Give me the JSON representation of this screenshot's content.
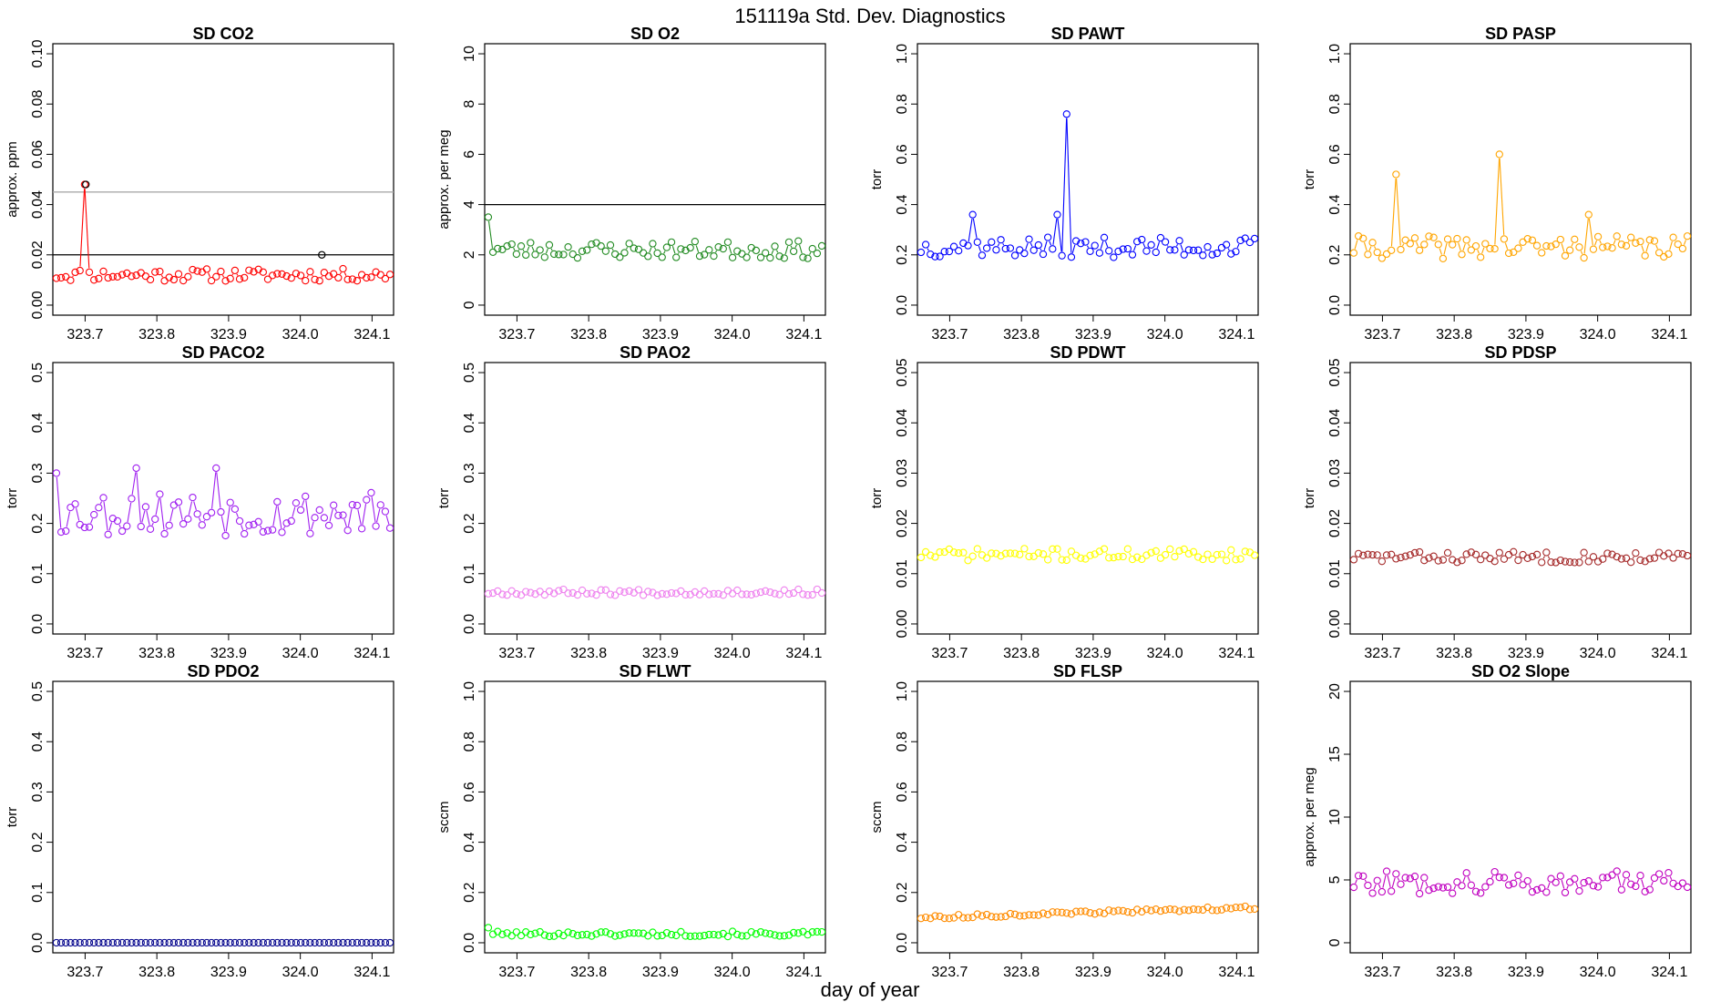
{
  "figure": {
    "title": "151119a   Std. Dev. Diagnostics",
    "xlabel": "day of year"
  },
  "chart_data": [
    {
      "type": "line",
      "title": "SD CO2",
      "ylabel": "approx. ppm",
      "color": "#ff0000",
      "ylim": [
        0,
        0.1
      ],
      "yticks": [
        "0.00",
        "0.02",
        "0.04",
        "0.06",
        "0.08",
        "0.10"
      ],
      "ytick_values": [
        0,
        0.02,
        0.04,
        0.06,
        0.08,
        0.1
      ],
      "xlim": [
        323.655,
        324.13
      ],
      "xticks": [
        "323.7",
        "323.8",
        "323.9",
        "324.0",
        "324.1"
      ],
      "xtick_values": [
        323.7,
        323.8,
        323.9,
        324.0,
        324.1
      ],
      "hlines": [
        {
          "y": 0.02,
          "color": "#000000"
        },
        {
          "y": 0.045,
          "color": "#aaaaaa"
        }
      ],
      "highlight_points": [
        {
          "x": 323.701,
          "y": 0.048
        },
        {
          "x": 324.03,
          "y": 0.02
        }
      ],
      "seed": 11,
      "base": 0.012,
      "jitter": 0.0025,
      "spikes": [
        {
          "x": 323.701,
          "y": 0.048
        }
      ]
    },
    {
      "type": "line",
      "title": "SD O2",
      "ylabel": "approx. per meg",
      "color": "#228b22",
      "ylim": [
        0,
        10
      ],
      "yticks": [
        "0",
        "2",
        "4",
        "6",
        "8",
        "10"
      ],
      "ytick_values": [
        0,
        2,
        4,
        6,
        8,
        10
      ],
      "xlim": [
        323.655,
        324.13
      ],
      "xticks": [
        "323.7",
        "323.8",
        "323.9",
        "324.0",
        "324.1"
      ],
      "xtick_values": [
        323.7,
        323.8,
        323.9,
        324.0,
        324.1
      ],
      "hlines": [
        {
          "y": 4,
          "color": "#000000"
        }
      ],
      "highlight_points": [],
      "seed": 23,
      "base": 2.2,
      "jitter": 0.35,
      "spikes": [
        {
          "x": 323.66,
          "y": 3.5
        }
      ]
    },
    {
      "type": "line",
      "title": "SD PAWT",
      "ylabel": "torr",
      "color": "#0000ff",
      "ylim": [
        0,
        1.0
      ],
      "yticks": [
        "0.0",
        "0.2",
        "0.4",
        "0.6",
        "0.8",
        "1.0"
      ],
      "ytick_values": [
        0,
        0.2,
        0.4,
        0.6,
        0.8,
        1.0
      ],
      "xlim": [
        323.655,
        324.13
      ],
      "xticks": [
        "323.7",
        "323.8",
        "323.9",
        "324.0",
        "324.1"
      ],
      "xtick_values": [
        323.7,
        323.8,
        323.9,
        324.0,
        324.1
      ],
      "hlines": [],
      "highlight_points": [],
      "seed": 37,
      "base": 0.23,
      "jitter": 0.04,
      "spikes": [
        {
          "x": 323.866,
          "y": 0.76
        },
        {
          "x": 323.73,
          "y": 0.36
        },
        {
          "x": 323.85,
          "y": 0.36
        }
      ]
    },
    {
      "type": "line",
      "title": "SD PASP",
      "ylabel": "torr",
      "color": "#ffa500",
      "ylim": [
        0,
        1.0
      ],
      "yticks": [
        "0.0",
        "0.2",
        "0.4",
        "0.6",
        "0.8",
        "1.0"
      ],
      "ytick_values": [
        0,
        0.2,
        0.4,
        0.6,
        0.8,
        1.0
      ],
      "xlim": [
        323.655,
        324.13
      ],
      "xticks": [
        "323.7",
        "323.8",
        "323.9",
        "324.0",
        "324.1"
      ],
      "xtick_values": [
        323.7,
        323.8,
        323.9,
        324.0,
        324.1
      ],
      "hlines": [],
      "highlight_points": [],
      "seed": 41,
      "base": 0.23,
      "jitter": 0.045,
      "spikes": [
        {
          "x": 323.716,
          "y": 0.52
        },
        {
          "x": 323.866,
          "y": 0.6
        },
        {
          "x": 323.99,
          "y": 0.36
        }
      ]
    },
    {
      "type": "line",
      "title": "SD PACO2",
      "ylabel": "torr",
      "color": "#a020f0",
      "ylim": [
        0,
        0.5
      ],
      "yticks": [
        "0.0",
        "0.1",
        "0.2",
        "0.3",
        "0.4",
        "0.5"
      ],
      "ytick_values": [
        0,
        0.1,
        0.2,
        0.3,
        0.4,
        0.5
      ],
      "xlim": [
        323.655,
        324.13
      ],
      "xticks": [
        "323.7",
        "323.8",
        "323.9",
        "324.0",
        "324.1"
      ],
      "xtick_values": [
        323.7,
        323.8,
        323.9,
        324.0,
        324.1
      ],
      "hlines": [],
      "highlight_points": [],
      "seed": 53,
      "base": 0.22,
      "jitter": 0.045,
      "spikes": [
        {
          "x": 323.66,
          "y": 0.3
        },
        {
          "x": 323.77,
          "y": 0.31
        },
        {
          "x": 323.883,
          "y": 0.31
        }
      ]
    },
    {
      "type": "line",
      "title": "SD PAO2",
      "ylabel": "torr",
      "color": "#ee82ee",
      "ylim": [
        0,
        0.5
      ],
      "yticks": [
        "0.0",
        "0.1",
        "0.2",
        "0.3",
        "0.4",
        "0.5"
      ],
      "ytick_values": [
        0,
        0.1,
        0.2,
        0.3,
        0.4,
        0.5
      ],
      "xlim": [
        323.655,
        324.13
      ],
      "xticks": [
        "323.7",
        "323.8",
        "323.9",
        "324.0",
        "324.1"
      ],
      "xtick_values": [
        323.7,
        323.8,
        323.9,
        324.0,
        324.1
      ],
      "hlines": [],
      "highlight_points": [],
      "seed": 67,
      "base": 0.063,
      "jitter": 0.006,
      "spikes": []
    },
    {
      "type": "line",
      "title": "SD PDWT",
      "ylabel": "torr",
      "color": "#ffff00",
      "ylim": [
        0,
        0.05
      ],
      "yticks": [
        "0.00",
        "0.01",
        "0.02",
        "0.03",
        "0.04",
        "0.05"
      ],
      "ytick_values": [
        0,
        0.01,
        0.02,
        0.03,
        0.04,
        0.05
      ],
      "xlim": [
        323.655,
        324.13
      ],
      "xticks": [
        "323.7",
        "323.8",
        "323.9",
        "324.0",
        "324.1"
      ],
      "xtick_values": [
        323.7,
        323.8,
        323.9,
        324.0,
        324.1
      ],
      "hlines": [],
      "highlight_points": [],
      "seed": 71,
      "base": 0.0138,
      "jitter": 0.0012,
      "spikes": []
    },
    {
      "type": "line",
      "title": "SD PDSP",
      "ylabel": "torr",
      "color": "#a52a2a",
      "ylim": [
        0,
        0.05
      ],
      "yticks": [
        "0.00",
        "0.01",
        "0.02",
        "0.03",
        "0.04",
        "0.05"
      ],
      "ytick_values": [
        0,
        0.01,
        0.02,
        0.03,
        0.04,
        0.05
      ],
      "xlim": [
        323.655,
        324.13
      ],
      "xticks": [
        "323.7",
        "323.8",
        "323.9",
        "324.0",
        "324.1"
      ],
      "xtick_values": [
        323.7,
        323.8,
        323.9,
        324.0,
        324.1
      ],
      "hlines": [],
      "highlight_points": [],
      "seed": 83,
      "base": 0.0133,
      "jitter": 0.0011,
      "spikes": []
    },
    {
      "type": "line",
      "title": "SD PDO2",
      "ylabel": "torr",
      "color": "#00008b",
      "ylim": [
        0,
        0.5
      ],
      "yticks": [
        "0.0",
        "0.1",
        "0.2",
        "0.3",
        "0.4",
        "0.5"
      ],
      "ytick_values": [
        0,
        0.1,
        0.2,
        0.3,
        0.4,
        0.5
      ],
      "xlim": [
        323.655,
        324.13
      ],
      "xticks": [
        "323.7",
        "323.8",
        "323.9",
        "324.0",
        "324.1"
      ],
      "xtick_values": [
        323.7,
        323.8,
        323.9,
        324.0,
        324.1
      ],
      "hlines": [],
      "highlight_points": [],
      "seed": 97,
      "base": 0.0,
      "jitter": 0.0,
      "spikes": []
    },
    {
      "type": "line",
      "title": "SD FLWT",
      "ylabel": "sccm",
      "color": "#00ff00",
      "ylim": [
        0,
        1.0
      ],
      "yticks": [
        "0.0",
        "0.2",
        "0.4",
        "0.6",
        "0.8",
        "1.0"
      ],
      "ytick_values": [
        0,
        0.2,
        0.4,
        0.6,
        0.8,
        1.0
      ],
      "xlim": [
        323.655,
        324.13
      ],
      "xticks": [
        "323.7",
        "323.8",
        "323.9",
        "324.0",
        "324.1"
      ],
      "xtick_values": [
        323.7,
        323.8,
        323.9,
        324.0,
        324.1
      ],
      "hlines": [],
      "highlight_points": [],
      "seed": 101,
      "base": 0.035,
      "jitter": 0.01,
      "spikes": [
        {
          "x": 323.66,
          "y": 0.06
        }
      ]
    },
    {
      "type": "line",
      "title": "SD FLSP",
      "ylabel": "sccm",
      "color": "#ff8c00",
      "ylim": [
        0,
        1.0
      ],
      "yticks": [
        "0.0",
        "0.2",
        "0.4",
        "0.6",
        "0.8",
        "1.0"
      ],
      "ytick_values": [
        0,
        0.2,
        0.4,
        0.6,
        0.8,
        1.0
      ],
      "xlim": [
        323.655,
        324.13
      ],
      "xticks": [
        "323.7",
        "323.8",
        "323.9",
        "324.0",
        "324.1"
      ],
      "xtick_values": [
        323.7,
        323.8,
        323.9,
        324.0,
        324.1
      ],
      "hlines": [],
      "highlight_points": [],
      "seed": 113,
      "base": 0.1,
      "jitter": 0.007,
      "trend": 0.04,
      "spikes": []
    },
    {
      "type": "line",
      "title": "SD O2 Slope",
      "ylabel": "approx. per meg",
      "color": "#c000c0",
      "ylim": [
        0,
        20
      ],
      "yticks": [
        "0",
        "5",
        "10",
        "15",
        "20"
      ],
      "ytick_values": [
        0,
        5,
        10,
        15,
        20
      ],
      "xlim": [
        323.655,
        324.13
      ],
      "xticks": [
        "323.7",
        "323.8",
        "323.9",
        "324.0",
        "324.1"
      ],
      "xtick_values": [
        323.7,
        323.8,
        323.9,
        324.0,
        324.1
      ],
      "hlines": [],
      "highlight_points": [],
      "seed": 127,
      "base": 4.8,
      "jitter": 0.9,
      "spikes": []
    }
  ]
}
